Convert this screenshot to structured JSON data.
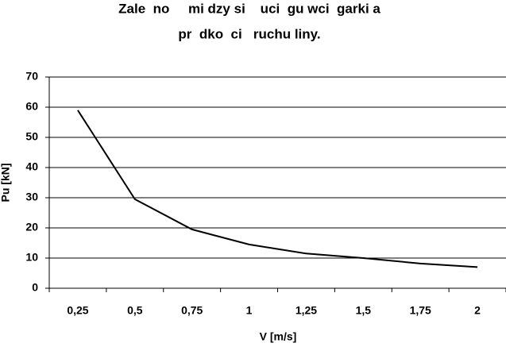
{
  "chart_data": {
    "type": "line",
    "title": [
      "Zale  no     mi dzy si    uci  gu wci  garki a",
      "pr  dko  ci   ruchu liny."
    ],
    "x_label": "V [m/s]",
    "y_label": "Pu [kN]",
    "categories": [
      "0,25",
      "0,5",
      "0,75",
      "1",
      "1,25",
      "1,5",
      "1,75",
      "2"
    ],
    "values": [
      59,
      29.5,
      19.5,
      14.5,
      11.5,
      10,
      8.2,
      7
    ],
    "color": "#000000",
    "ylim": [
      0,
      70
    ],
    "yticks": [
      0,
      10,
      20,
      30,
      40,
      50,
      60,
      70
    ],
    "grid": true
  }
}
